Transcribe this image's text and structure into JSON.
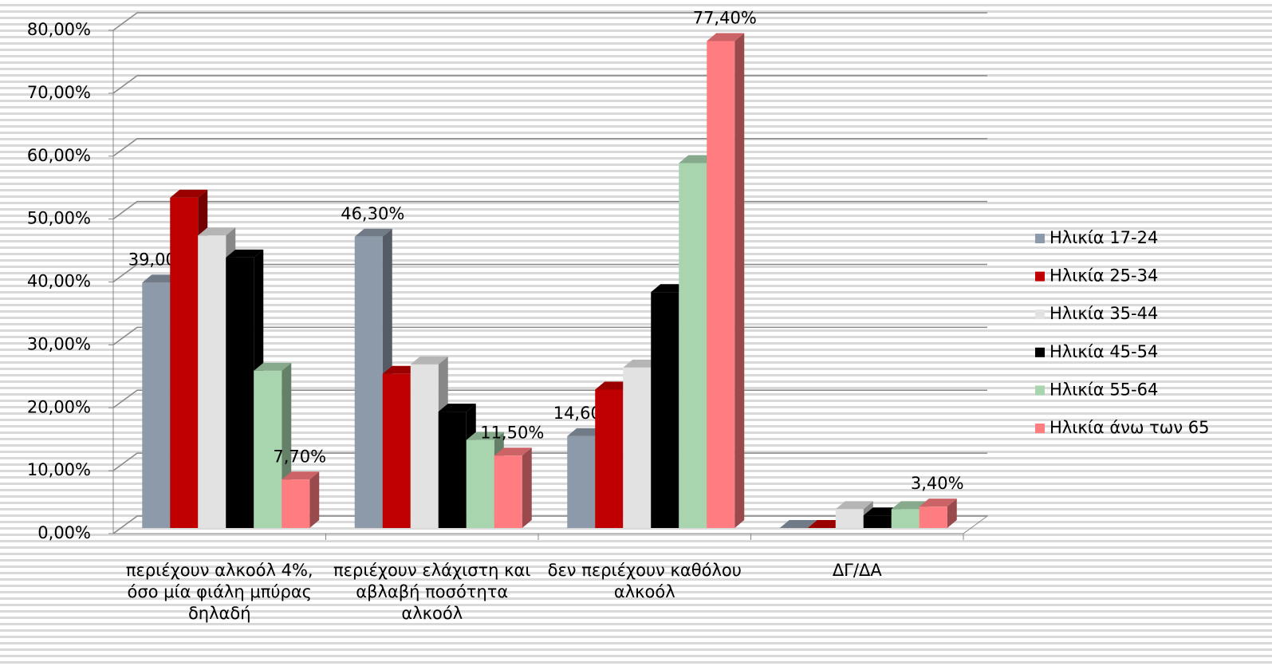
{
  "chart_data": {
    "type": "bar3d",
    "categories": [
      "περιέχουν αλκοόλ 4%, όσο μία φιάλη μπύρας δηλαδή",
      "περιέχουν ελάχιστη και αβλαβή ποσότητα αλκοόλ",
      "δεν περιέχουν καθόλου αλκοόλ",
      "ΔΓ/ΔΑ"
    ],
    "series": [
      {
        "name": "Ηλικία 17-24",
        "color": "#8d9aa9",
        "values": [
          39.0,
          46.3,
          14.6,
          0
        ],
        "value_labels": [
          "39,00%",
          "46,30%",
          "14,60%",
          null
        ]
      },
      {
        "name": "Ηλικία 25-34",
        "color": "#c00000",
        "values": [
          52.5,
          24.5,
          22,
          0
        ]
      },
      {
        "name": "Ηλικία 35-44",
        "color": "#e2e2e2",
        "values": [
          46.5,
          26,
          25.5,
          3
        ]
      },
      {
        "name": "Ηλικία 45-54",
        "color": "#000000",
        "values": [
          43,
          18.5,
          37.5,
          2
        ]
      },
      {
        "name": "Ηλικία 55-64",
        "color": "#a8d5ae",
        "values": [
          25,
          14,
          58,
          3
        ]
      },
      {
        "name": "Ηλικία άνω των 65",
        "color": "#ff7c80",
        "values": [
          7.7,
          11.5,
          77.4,
          3.4
        ],
        "value_labels": [
          "7,70%",
          "11,50%",
          "77,40%",
          "3,40%"
        ]
      }
    ],
    "ylim": [
      0,
      80
    ],
    "yticks": [
      {
        "value": 0,
        "label": "0,00%"
      },
      {
        "value": 10,
        "label": "10,00%"
      },
      {
        "value": 20,
        "label": "20,00%"
      },
      {
        "value": 30,
        "label": "30,00%"
      },
      {
        "value": 40,
        "label": "40,00%"
      },
      {
        "value": 50,
        "label": "50,00%"
      },
      {
        "value": 60,
        "label": "60,00%"
      },
      {
        "value": 70,
        "label": "70,00%"
      },
      {
        "value": 80,
        "label": "80,00%"
      }
    ],
    "grid": true,
    "legend": "right"
  }
}
